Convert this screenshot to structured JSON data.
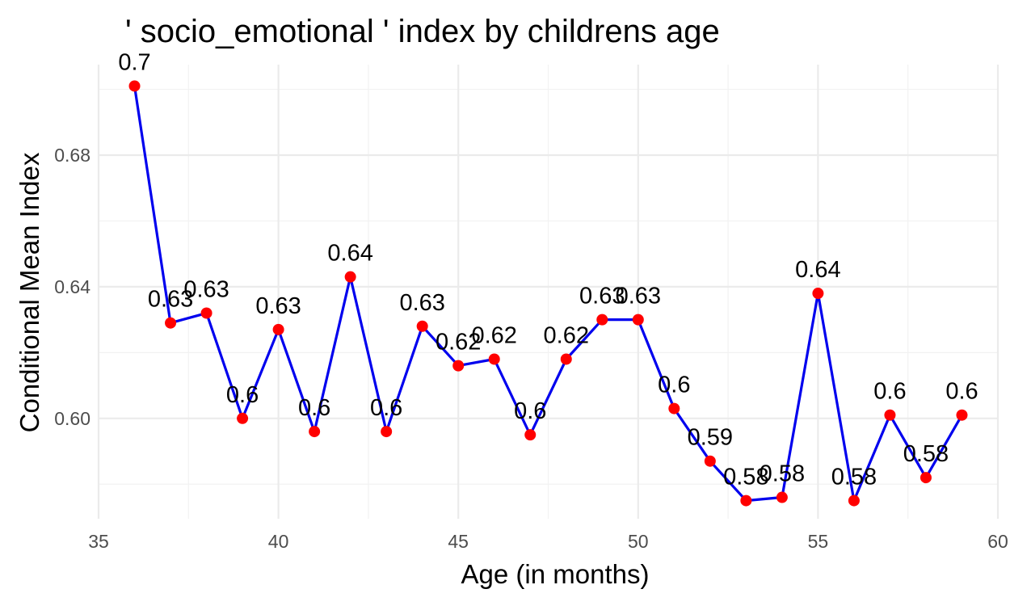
{
  "chart_data": {
    "type": "line",
    "title": "' socio_emotional ' index by childrens age",
    "xlabel": "Age (in months)",
    "ylabel": "Conditional Mean Index",
    "xlim": [
      35,
      60
    ],
    "ylim": [
      0.5695,
      0.7075
    ],
    "x_ticks": [
      35,
      40,
      45,
      50,
      55,
      60
    ],
    "y_ticks": [
      0.6,
      0.64,
      0.68
    ],
    "x_tick_labels": [
      "35",
      "40",
      "45",
      "50",
      "55",
      "60"
    ],
    "y_tick_labels": [
      "0.60",
      "0.64",
      "0.68"
    ],
    "grid": true,
    "line_color": "#0000ee",
    "point_color": "#ff0000",
    "series": [
      {
        "x": [
          36,
          37,
          38,
          39,
          40,
          41,
          42,
          43,
          44,
          45,
          46,
          47,
          48,
          49,
          50,
          51,
          52,
          53,
          54,
          55,
          56,
          57,
          58,
          59
        ],
        "values": [
          0.701,
          0.629,
          0.632,
          0.6,
          0.627,
          0.596,
          0.643,
          0.596,
          0.628,
          0.616,
          0.618,
          0.595,
          0.618,
          0.63,
          0.63,
          0.603,
          0.587,
          0.575,
          0.576,
          0.638,
          0.575,
          0.601,
          0.582,
          0.601
        ],
        "labels": [
          "0.7",
          "0.63",
          "0.63",
          "0.6",
          "0.63",
          "0.6",
          "0.64",
          "0.6",
          "0.63",
          "0.62",
          "0.62",
          "0.6",
          "0.62",
          "0.63",
          "0.63",
          "0.6",
          "0.59",
          "0.58",
          "0.58",
          "0.64",
          "0.58",
          "0.6",
          "0.58",
          "0.6"
        ]
      }
    ]
  }
}
